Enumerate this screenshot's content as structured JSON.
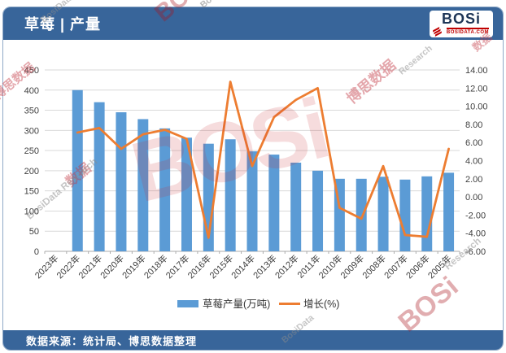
{
  "header": {
    "title": "草莓 | 产量",
    "logo": {
      "text": "BOSi",
      "domain": "BOSIDATA.COM"
    }
  },
  "footer": {
    "source": "数据来源：统计局、博思数据整理"
  },
  "watermarks": {
    "bosi": "BOSi",
    "cn": "博思数据",
    "cn_short": "数据",
    "en_full": "BosiData Research",
    "en": "BosiData",
    "en_short": "Research"
  },
  "chart_data": {
    "type": "bar",
    "title": "草莓 | 产量",
    "categories": [
      "2023年",
      "2022年",
      "2021年",
      "2020年",
      "2019年",
      "2018年",
      "2017年",
      "2016年",
      "2015年",
      "2014年",
      "2013年",
      "2012年",
      "2011年",
      "2010年",
      "2009年",
      "2008年",
      "2007年",
      "2006年",
      "2005年"
    ],
    "series": [
      {
        "name": "草莓产量(万吨)",
        "type": "bar",
        "axis": "left",
        "color": "#5B9BD5",
        "values": [
          null,
          400,
          370,
          345,
          328,
          305,
          282,
          267,
          278,
          248,
          240,
          220,
          200,
          180,
          180,
          185,
          178,
          186,
          195
        ]
      },
      {
        "name": "增长(%)",
        "type": "line",
        "axis": "right",
        "color": "#ED7D31",
        "values": [
          null,
          7.1,
          7.6,
          5.3,
          6.9,
          7.4,
          6.4,
          -4.5,
          12.7,
          3.4,
          8.8,
          10.7,
          12.0,
          -1.2,
          -2.4,
          3.4,
          -4.2,
          -4.4,
          5.3
        ]
      }
    ],
    "left_axis": {
      "min": 0,
      "max": 450,
      "step": 50
    },
    "right_axis": {
      "min": -6,
      "max": 14,
      "step": 2,
      "format": "2dp"
    },
    "grid": true,
    "legend_position": "bottom"
  }
}
